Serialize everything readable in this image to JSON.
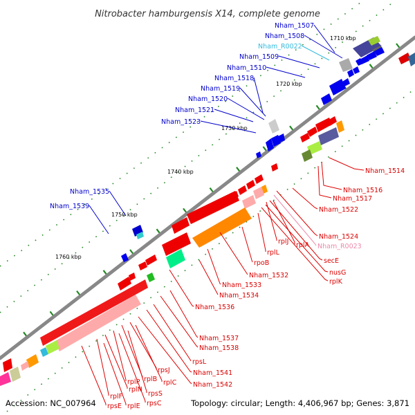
{
  "title": "Nitrobacter hamburgensis X14, complete genome",
  "footer": {
    "accession": "Accession: NC_007964",
    "summary": "Topology: circular; Length: 4,406,967 bp; Genes: 3,871"
  },
  "scale_labels": [
    "1710 kbp",
    "1720 kbp",
    "1730 kbp",
    "1740 kbp",
    "1750 kbp",
    "1760 kbp"
  ],
  "colors": {
    "forward_label": "#0000cc",
    "reverse_label": "#dd0000",
    "rna_forward_label": "#33bbdd",
    "rna_reverse_label": "#ee88aa",
    "backbone": "#888888",
    "tick": "#228822"
  },
  "forward_labels": [
    "Nham_1507",
    "Nham_1508",
    "Nham_R0022",
    "Nham_1509",
    "Nham_1510",
    "Nham_1518",
    "Nham_1519",
    "Nham_1520",
    "Nham_1521",
    "Nham_1523",
    "Nham_1535",
    "Nham_1539"
  ],
  "reverse_labels": [
    "Nham_1514",
    "Nham_1516",
    "Nham_1517",
    "Nham_1522",
    "Nham_1524",
    "Nham_R0023",
    "secE",
    "nusG",
    "rplK",
    "rplA",
    "rplJ",
    "rplL",
    "rpoB",
    "Nham_1532",
    "Nham_1533",
    "Nham_1534",
    "Nham_1536",
    "Nham_1537",
    "Nham_1538",
    "rpsL",
    "Nham_1541",
    "Nham_1542",
    "rpsJ",
    "rplC",
    "rplB",
    "rplP",
    "rpsS",
    "rplN",
    "rpsC",
    "rplF",
    "rplE",
    "rpsE"
  ]
}
